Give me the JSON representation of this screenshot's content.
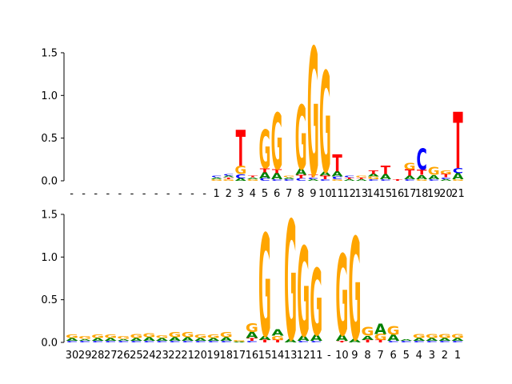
{
  "colors": {
    "A": "#008000",
    "C": "#0000ff",
    "G": "#ffa500",
    "T": "#ff0000",
    "axis": "#000000",
    "background": "#ffffff"
  },
  "chart_data": [
    {
      "type": "sequence-logo",
      "ylim": [
        0,
        1.6
      ],
      "yticks": [
        "0.0",
        "0.5",
        "1.0",
        "1.5"
      ],
      "ytick_values": [
        0,
        0.5,
        1.0,
        1.5
      ],
      "positions": [
        "-",
        "-",
        "-",
        "-",
        "-",
        "-",
        "-",
        "-",
        "-",
        "-",
        "-",
        "-",
        "1",
        "2",
        "3",
        "4",
        "5",
        "6",
        "7",
        "8",
        "9",
        "10",
        "11",
        "12",
        "13",
        "14",
        "15",
        "16",
        "17",
        "18",
        "19",
        "20",
        "21"
      ],
      "columns": [
        [],
        [],
        [],
        [],
        [],
        [],
        [],
        [],
        [],
        [],
        [],
        [],
        [
          {
            "b": "G",
            "h": 0.02
          },
          {
            "b": "A",
            "h": 0.02
          },
          {
            "b": "C",
            "h": 0.02
          }
        ],
        [
          {
            "b": "G",
            "h": 0.02
          },
          {
            "b": "T",
            "h": 0.02
          },
          {
            "b": "A",
            "h": 0.02
          },
          {
            "b": "C",
            "h": 0.02
          }
        ],
        [
          {
            "b": "A",
            "h": 0.03
          },
          {
            "b": "C",
            "h": 0.05
          },
          {
            "b": "G",
            "h": 0.1
          },
          {
            "b": "T",
            "h": 0.42
          }
        ],
        [
          {
            "b": "G",
            "h": 0.02
          },
          {
            "b": "A",
            "h": 0.02
          },
          {
            "b": "T",
            "h": 0.02
          }
        ],
        [
          {
            "b": "C",
            "h": 0.03
          },
          {
            "b": "A",
            "h": 0.07
          },
          {
            "b": "T",
            "h": 0.05
          },
          {
            "b": "G",
            "h": 0.45
          }
        ],
        [
          {
            "b": "C",
            "h": 0.02
          },
          {
            "b": "A",
            "h": 0.07
          },
          {
            "b": "T",
            "h": 0.05
          },
          {
            "b": "G",
            "h": 0.66
          }
        ],
        [
          {
            "b": "C",
            "h": 0.02
          },
          {
            "b": "A",
            "h": 0.02
          },
          {
            "b": "G",
            "h": 0.02
          }
        ],
        [
          {
            "b": "C",
            "h": 0.03
          },
          {
            "b": "T",
            "h": 0.04
          },
          {
            "b": "A",
            "h": 0.07
          },
          {
            "b": "G",
            "h": 0.75
          }
        ],
        [
          {
            "b": "A",
            "h": 0.02
          },
          {
            "b": "C",
            "h": 0.02
          },
          {
            "b": "T",
            "h": 0.03
          },
          {
            "b": "G",
            "h": 1.5
          }
        ],
        [
          {
            "b": "C",
            "h": 0.02
          },
          {
            "b": "T",
            "h": 0.04
          },
          {
            "b": "A",
            "h": 0.05
          },
          {
            "b": "G",
            "h": 1.18
          }
        ],
        [
          {
            "b": "G",
            "h": 0.02
          },
          {
            "b": "C",
            "h": 0.03
          },
          {
            "b": "A",
            "h": 0.06
          },
          {
            "b": "T",
            "h": 0.2
          }
        ],
        [
          {
            "b": "A",
            "h": 0.02
          },
          {
            "b": "T",
            "h": 0.02
          },
          {
            "b": "C",
            "h": 0.02
          }
        ],
        [
          {
            "b": "A",
            "h": 0.02
          },
          {
            "b": "T",
            "h": 0.02
          },
          {
            "b": "G",
            "h": 0.02
          }
        ],
        [
          {
            "b": "C",
            "h": 0.02
          },
          {
            "b": "G",
            "h": 0.03
          },
          {
            "b": "A",
            "h": 0.03
          },
          {
            "b": "T",
            "h": 0.04
          }
        ],
        [
          {
            "b": "C",
            "h": 0.02
          },
          {
            "b": "A",
            "h": 0.06
          },
          {
            "b": "T",
            "h": 0.1
          }
        ],
        [
          {
            "b": "T",
            "h": 0.02
          }
        ],
        [
          {
            "b": "C",
            "h": 0.02
          },
          {
            "b": "A",
            "h": 0.04
          },
          {
            "b": "T",
            "h": 0.07
          },
          {
            "b": "G",
            "h": 0.08
          }
        ],
        [
          {
            "b": "G",
            "h": 0.02
          },
          {
            "b": "A",
            "h": 0.05
          },
          {
            "b": "T",
            "h": 0.06
          },
          {
            "b": "C",
            "h": 0.25
          }
        ],
        [
          {
            "b": "C",
            "h": 0.02
          },
          {
            "b": "A",
            "h": 0.05
          },
          {
            "b": "G",
            "h": 0.09
          }
        ],
        [
          {
            "b": "A",
            "h": 0.02
          },
          {
            "b": "C",
            "h": 0.02
          },
          {
            "b": "T",
            "h": 0.04
          },
          {
            "b": "G",
            "h": 0.04
          }
        ],
        [
          {
            "b": "G",
            "h": 0.02
          },
          {
            "b": "A",
            "h": 0.07
          },
          {
            "b": "C",
            "h": 0.06
          },
          {
            "b": "T",
            "h": 0.66
          }
        ]
      ]
    },
    {
      "type": "sequence-logo",
      "ylim": [
        0,
        1.6
      ],
      "yticks": [
        "0.0",
        "0.5",
        "1.0",
        "1.5"
      ],
      "ytick_values": [
        0,
        0.5,
        1.0,
        1.5
      ],
      "positions": [
        "30",
        "29",
        "28",
        "27",
        "26",
        "25",
        "24",
        "23",
        "22",
        "21",
        "20",
        "19",
        "18",
        "17",
        "16",
        "15",
        "14",
        "13",
        "12",
        "11",
        "-",
        "10",
        "9",
        "8",
        "7",
        "6",
        "5",
        "4",
        "3",
        "2",
        "1"
      ],
      "columns": [
        [
          {
            "b": "C",
            "h": 0.02
          },
          {
            "b": "A",
            "h": 0.03
          },
          {
            "b": "G",
            "h": 0.04
          }
        ],
        [
          {
            "b": "C",
            "h": 0.02
          },
          {
            "b": "A",
            "h": 0.02
          },
          {
            "b": "G",
            "h": 0.03
          }
        ],
        [
          {
            "b": "C",
            "h": 0.02
          },
          {
            "b": "A",
            "h": 0.03
          },
          {
            "b": "G",
            "h": 0.04
          }
        ],
        [
          {
            "b": "C",
            "h": 0.02
          },
          {
            "b": "A",
            "h": 0.03
          },
          {
            "b": "G",
            "h": 0.04
          }
        ],
        [
          {
            "b": "C",
            "h": 0.02
          },
          {
            "b": "A",
            "h": 0.02
          },
          {
            "b": "G",
            "h": 0.03
          }
        ],
        [
          {
            "b": "C",
            "h": 0.02
          },
          {
            "b": "A",
            "h": 0.03
          },
          {
            "b": "G",
            "h": 0.05
          }
        ],
        [
          {
            "b": "C",
            "h": 0.02
          },
          {
            "b": "A",
            "h": 0.04
          },
          {
            "b": "G",
            "h": 0.05
          }
        ],
        [
          {
            "b": "C",
            "h": 0.02
          },
          {
            "b": "A",
            "h": 0.03
          },
          {
            "b": "G",
            "h": 0.03
          }
        ],
        [
          {
            "b": "C",
            "h": 0.02
          },
          {
            "b": "A",
            "h": 0.04
          },
          {
            "b": "G",
            "h": 0.06
          }
        ],
        [
          {
            "b": "C",
            "h": 0.02
          },
          {
            "b": "A",
            "h": 0.04
          },
          {
            "b": "G",
            "h": 0.06
          }
        ],
        [
          {
            "b": "C",
            "h": 0.02
          },
          {
            "b": "A",
            "h": 0.03
          },
          {
            "b": "G",
            "h": 0.04
          }
        ],
        [
          {
            "b": "C",
            "h": 0.02
          },
          {
            "b": "A",
            "h": 0.03
          },
          {
            "b": "G",
            "h": 0.04
          }
        ],
        [
          {
            "b": "C",
            "h": 0.02
          },
          {
            "b": "A",
            "h": 0.04
          },
          {
            "b": "G",
            "h": 0.06
          }
        ],
        [
          {
            "b": "A",
            "h": 0.01
          },
          {
            "b": "G",
            "h": 0.02
          }
        ],
        [
          {
            "b": "C",
            "h": 0.02
          },
          {
            "b": "T",
            "h": 0.03
          },
          {
            "b": "A",
            "h": 0.07
          },
          {
            "b": "G",
            "h": 0.1
          }
        ],
        [
          {
            "b": "T",
            "h": 0.03
          },
          {
            "b": "A",
            "h": 0.05
          },
          {
            "b": "G",
            "h": 1.2
          }
        ],
        [
          {
            "b": "T",
            "h": 0.03
          },
          {
            "b": "G",
            "h": 0.05
          },
          {
            "b": "A",
            "h": 0.07
          }
        ],
        [
          {
            "b": "A",
            "h": 0.04
          },
          {
            "b": "G",
            "h": 1.4
          }
        ],
        [
          {
            "b": "C",
            "h": 0.02
          },
          {
            "b": "A",
            "h": 0.06
          },
          {
            "b": "G",
            "h": 1.05
          }
        ],
        [
          {
            "b": "C",
            "h": 0.02
          },
          {
            "b": "A",
            "h": 0.07
          },
          {
            "b": "G",
            "h": 0.78
          }
        ],
        [],
        [
          {
            "b": "T",
            "h": 0.02
          },
          {
            "b": "A",
            "h": 0.07
          },
          {
            "b": "G",
            "h": 0.95
          }
        ],
        [
          {
            "b": "A",
            "h": 0.04
          },
          {
            "b": "G",
            "h": 1.2
          }
        ],
        [
          {
            "b": "T",
            "h": 0.03
          },
          {
            "b": "A",
            "h": 0.05
          },
          {
            "b": "G",
            "h": 0.1
          }
        ],
        [
          {
            "b": "T",
            "h": 0.03
          },
          {
            "b": "G",
            "h": 0.07
          },
          {
            "b": "A",
            "h": 0.12
          }
        ],
        [
          {
            "b": "C",
            "h": 0.02
          },
          {
            "b": "A",
            "h": 0.07
          },
          {
            "b": "G",
            "h": 0.1
          }
        ],
        [
          {
            "b": "C",
            "h": 0.02
          },
          {
            "b": "A",
            "h": 0.02
          }
        ],
        [
          {
            "b": "C",
            "h": 0.02
          },
          {
            "b": "A",
            "h": 0.03
          },
          {
            "b": "G",
            "h": 0.05
          }
        ],
        [
          {
            "b": "C",
            "h": 0.02
          },
          {
            "b": "A",
            "h": 0.03
          },
          {
            "b": "G",
            "h": 0.05
          }
        ],
        [
          {
            "b": "C",
            "h": 0.02
          },
          {
            "b": "A",
            "h": 0.03
          },
          {
            "b": "G",
            "h": 0.05
          }
        ],
        [
          {
            "b": "C",
            "h": 0.02
          },
          {
            "b": "A",
            "h": 0.03
          },
          {
            "b": "G",
            "h": 0.05
          }
        ]
      ]
    }
  ]
}
